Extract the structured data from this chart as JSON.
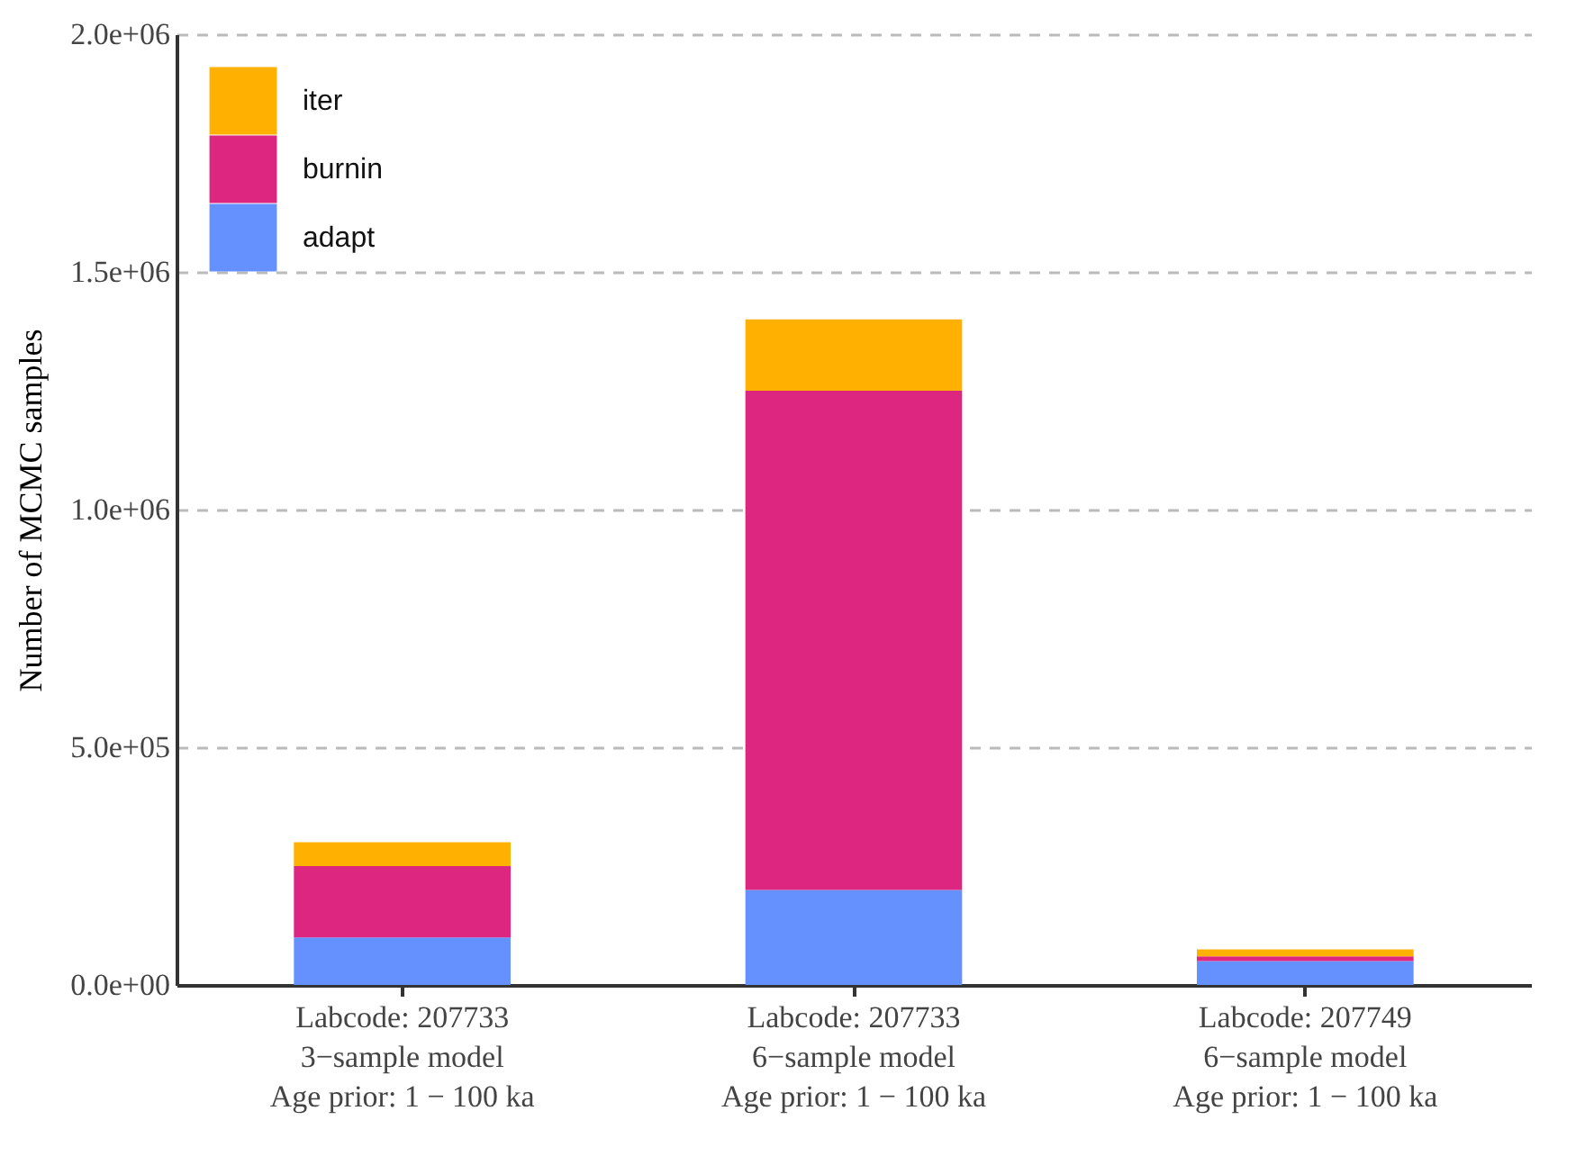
{
  "chart_data": {
    "type": "bar",
    "stacked": true,
    "ylabel": "Number of MCMC samples",
    "categories": [
      "Labcode: 207733\n3−sample model\nAge prior: 1 − 100 ka",
      "Labcode: 207733\n6−sample model\nAge prior: 1 − 100 ka",
      "Labcode: 207749\n6−sample model\nAge prior: 1 − 100 ka"
    ],
    "series": [
      {
        "name": "adapt",
        "color": "#6591ff",
        "values": [
          100000,
          200000,
          50000
        ]
      },
      {
        "name": "burnin",
        "color": "#dc267f",
        "values": [
          150000,
          1050000,
          10000
        ]
      },
      {
        "name": "iter",
        "color": "#ffb000",
        "values": [
          50000,
          150000,
          15000
        ]
      }
    ],
    "ylim": [
      0,
      2000000
    ],
    "yticks": [
      {
        "value": 0,
        "label": "0.0e+00"
      },
      {
        "value": 500000,
        "label": "5.0e+05"
      },
      {
        "value": 1000000,
        "label": "1.0e+06"
      },
      {
        "value": 1500000,
        "label": "1.5e+06"
      },
      {
        "value": 2000000,
        "label": "2.0e+06"
      }
    ],
    "grid": "y",
    "legend": "top left"
  }
}
